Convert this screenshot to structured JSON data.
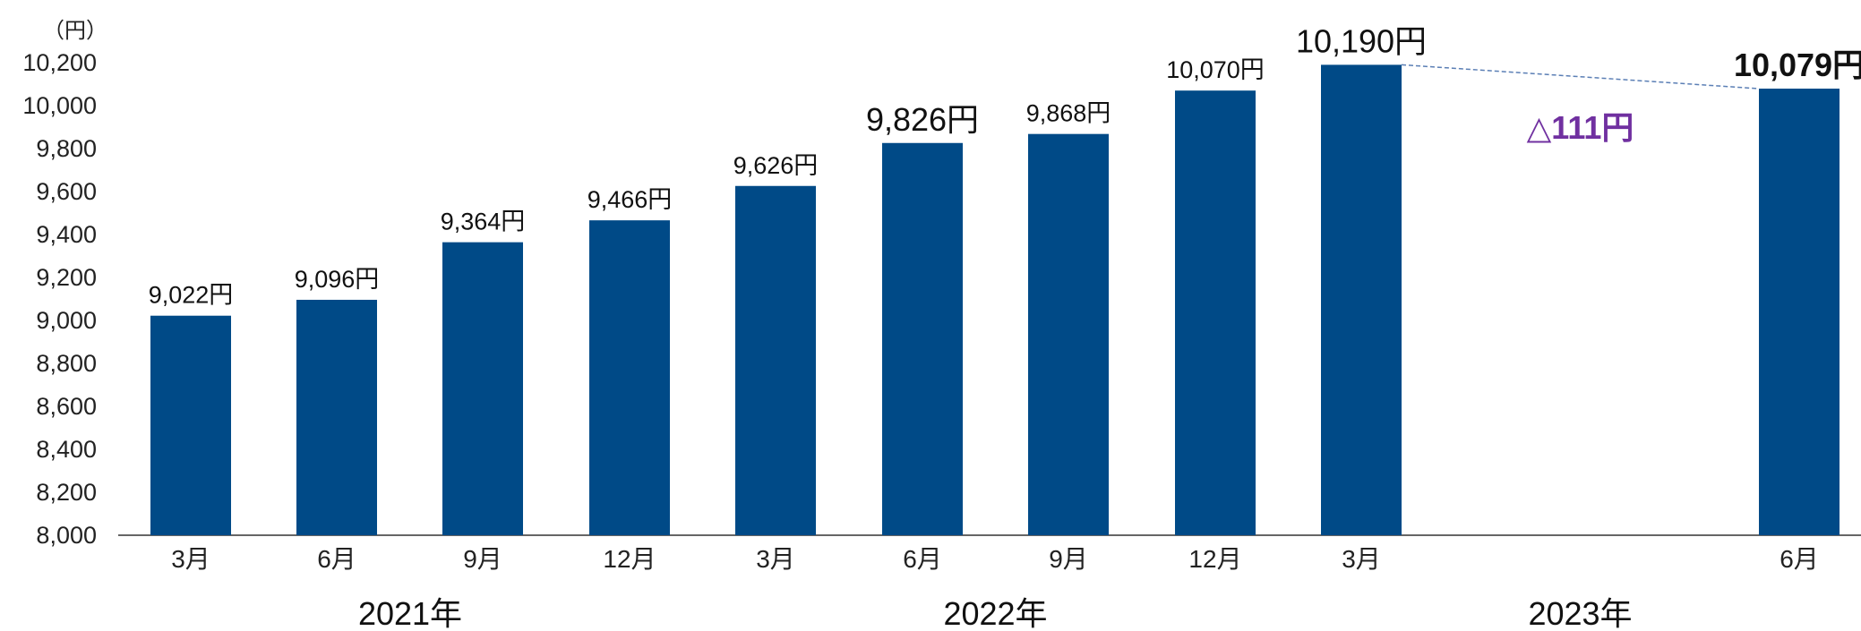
{
  "chart_data": {
    "type": "bar",
    "unit_label": "（円）",
    "categories": [
      "3月",
      "6月",
      "9月",
      "12月",
      "3月",
      "6月",
      "9月",
      "12月",
      "3月",
      "6月"
    ],
    "values": [
      9022,
      9096,
      9364,
      9466,
      9626,
      9826,
      9868,
      10070,
      10190,
      10079
    ],
    "data_labels": [
      "9,022円",
      "9,096円",
      "9,364円",
      "9,466円",
      "9,626円",
      "9,826円",
      "9,868円",
      "10,070円",
      "10,190円",
      "10,079円"
    ],
    "y_ticks": [
      "8,000",
      "8,200",
      "8,400",
      "8,600",
      "8,800",
      "9,000",
      "9,200",
      "9,400",
      "9,600",
      "9,800",
      "10,000",
      "10,200"
    ],
    "ylim": [
      8000,
      10200
    ],
    "years": [
      {
        "label": "2021年",
        "from": 0,
        "to": 3
      },
      {
        "label": "2022年",
        "from": 4,
        "to": 7
      },
      {
        "label": "2023年",
        "from": 8,
        "to": 9
      }
    ],
    "annotation": {
      "text": "△111円",
      "from_index": 8,
      "to_index": 9
    },
    "colors": {
      "bar": "#004a87",
      "annotation": "#7030a0",
      "connector": "#5b7fb5"
    },
    "grid": false,
    "legend": "none"
  }
}
